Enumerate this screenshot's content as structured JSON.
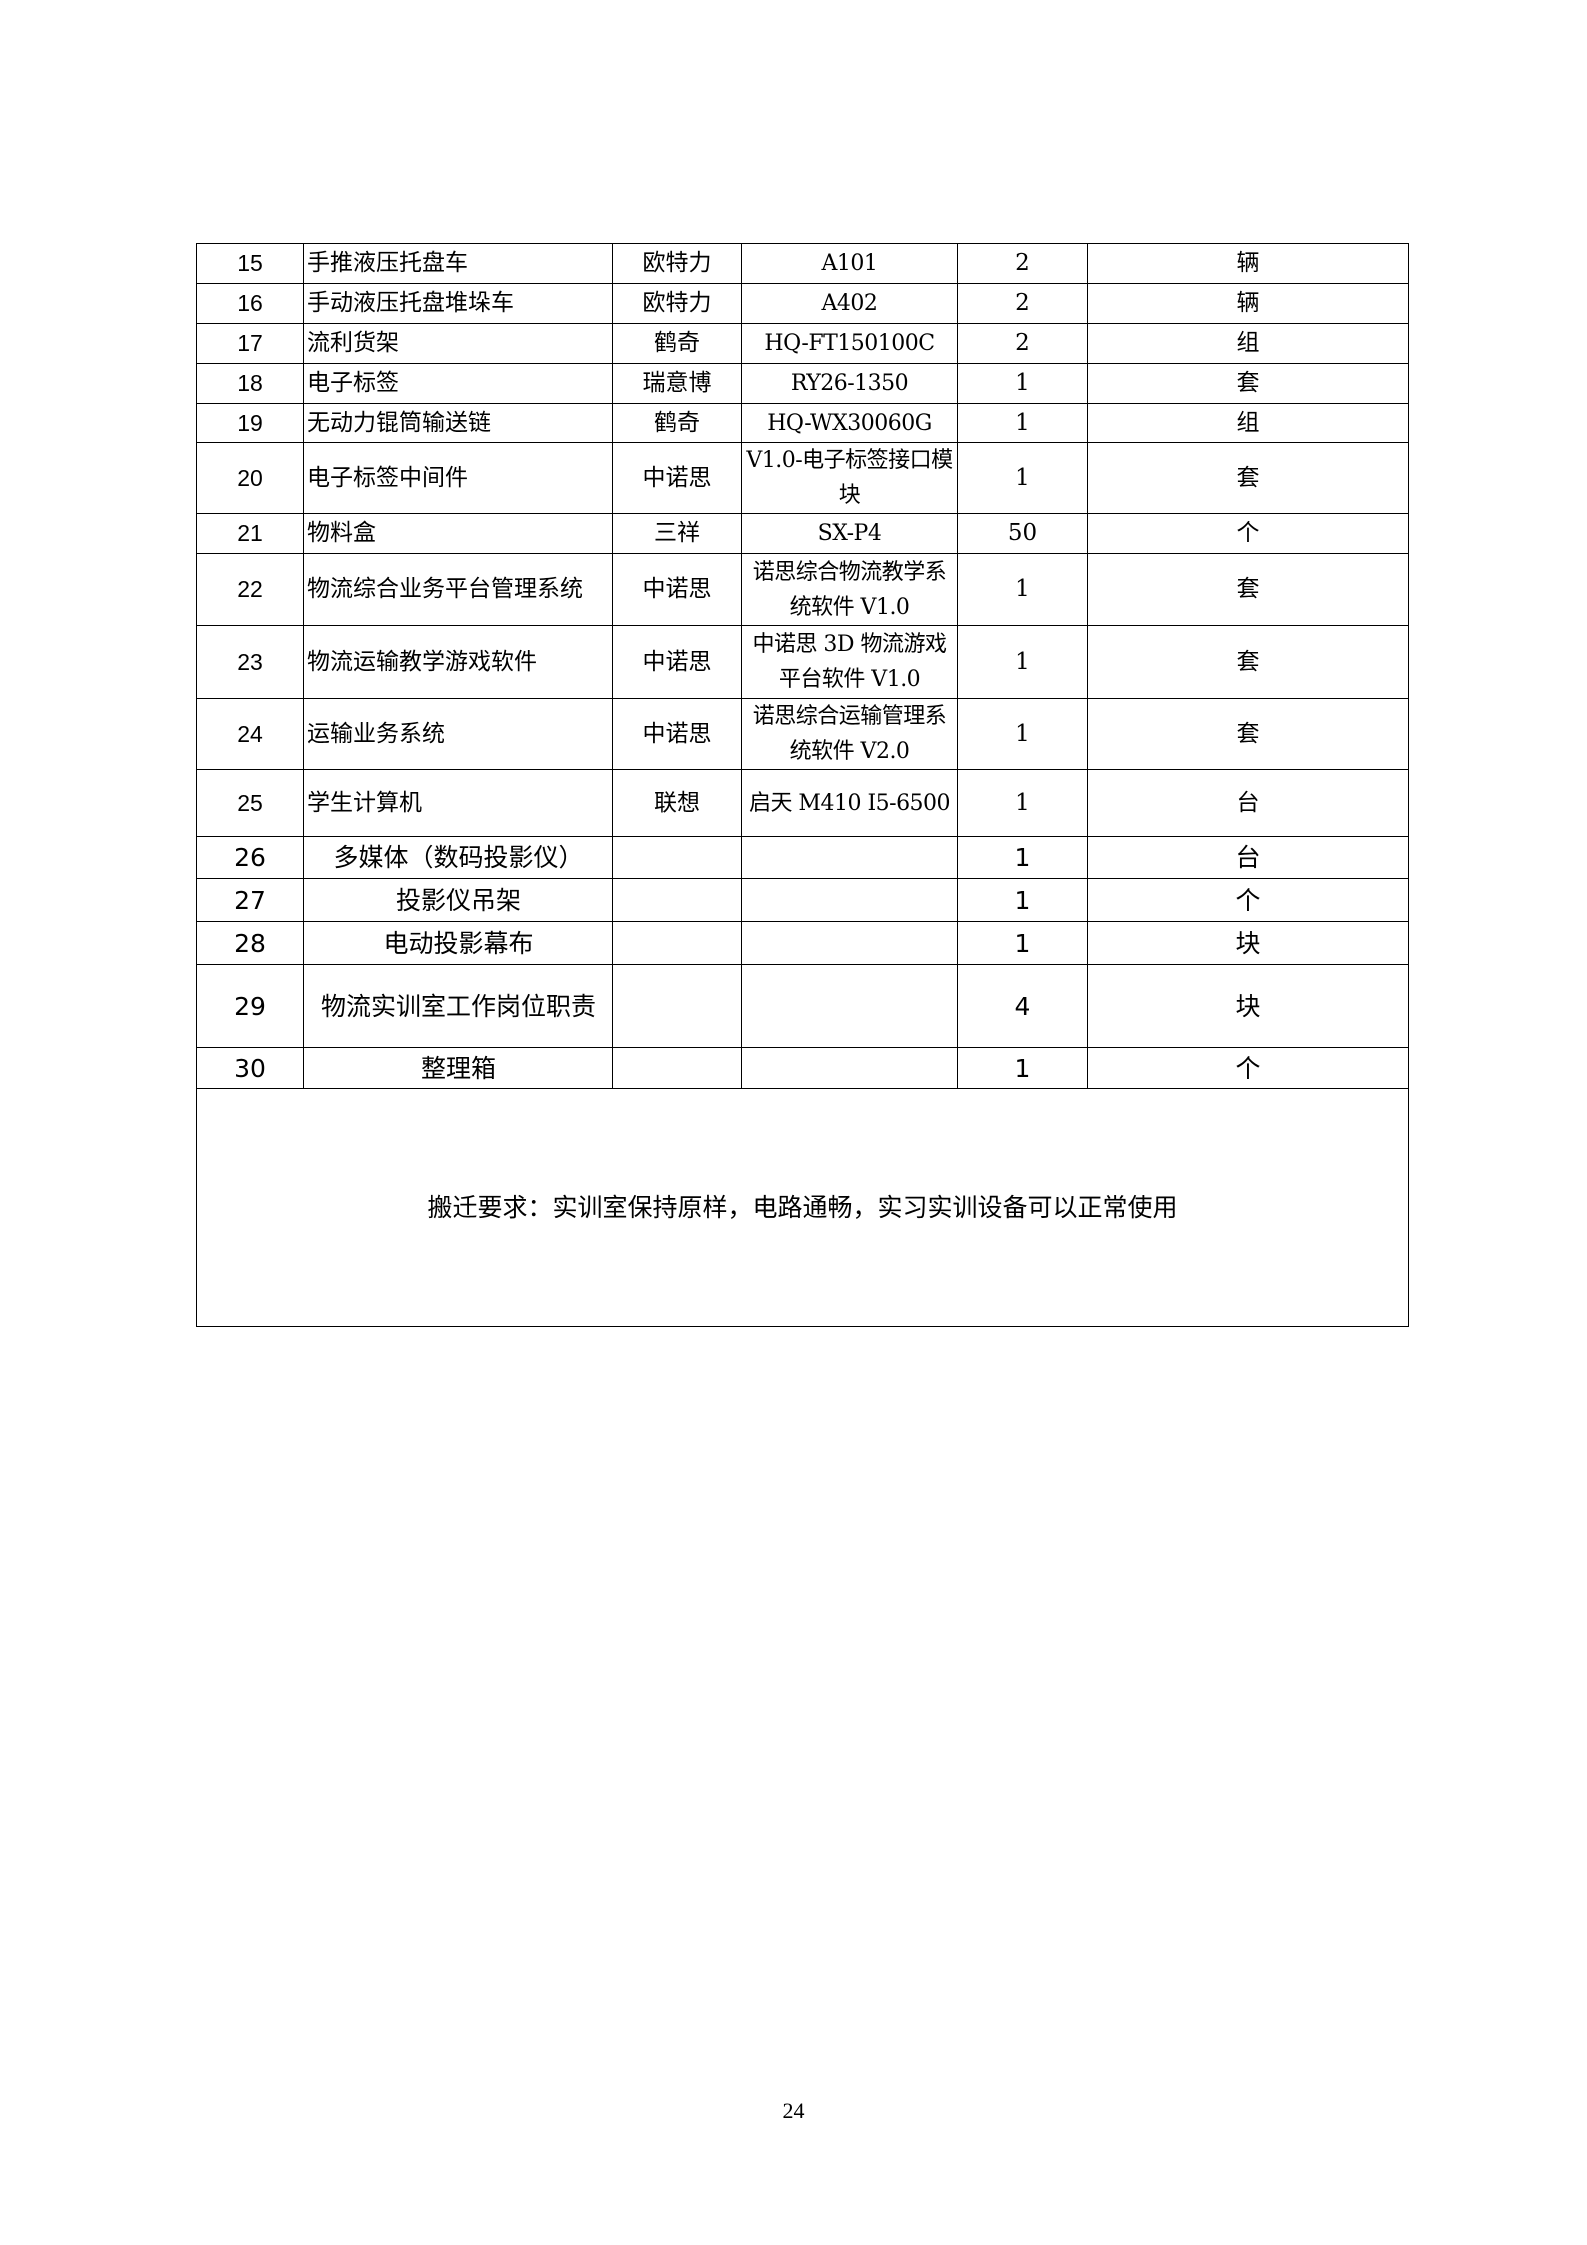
{
  "rows": [
    {
      "no": "15",
      "name": "手推液压托盘车",
      "brand": "欧特力",
      "model": "A101",
      "qty": "2",
      "unit": "辆"
    },
    {
      "no": "16",
      "name": "手动液压托盘堆垛车",
      "brand": "欧特力",
      "model": "A402",
      "qty": "2",
      "unit": "辆"
    },
    {
      "no": "17",
      "name": "流利货架",
      "brand": "鹤奇",
      "model": "HQ-FT150100C",
      "qty": "2",
      "unit": "组"
    },
    {
      "no": "18",
      "name": "电子标签",
      "brand": "瑞意博",
      "model": "RY26-1350",
      "qty": "1",
      "unit": "套"
    },
    {
      "no": "19",
      "name": "无动力锟筒输送链",
      "brand": "鹤奇",
      "model": "HQ-WX30060G",
      "qty": "1",
      "unit": "组"
    },
    {
      "no": "20",
      "name": "电子标签中间件",
      "brand": "中诺思",
      "model": "V1.0-电子标签接口模块",
      "qty": "1",
      "unit": "套"
    },
    {
      "no": "21",
      "name": "物料盒",
      "brand": "三祥",
      "model": "SX-P4",
      "qty": "50",
      "unit": "个"
    },
    {
      "no": "22",
      "name": "物流综合业务平台管理系统",
      "brand": "中诺思",
      "model": "诺思综合物流教学系统软件 V1.0",
      "qty": "1",
      "unit": "套"
    },
    {
      "no": "23",
      "name": "物流运输教学游戏软件",
      "brand": "中诺思",
      "model": "中诺思 3D 物流游戏平台软件 V1.0",
      "qty": "1",
      "unit": "套"
    },
    {
      "no": "24",
      "name": "运输业务系统",
      "brand": "中诺思",
      "model": "诺思综合运输管理系统软件 V2.0",
      "qty": "1",
      "unit": "套"
    },
    {
      "no": "25",
      "name": "学生计算机",
      "brand": "联想",
      "model": "启天 M410 I5-6500",
      "qty": "1",
      "unit": "台"
    },
    {
      "no": "26",
      "name": "多媒体（数码投影仪）",
      "brand": "",
      "model": "",
      "qty": "1",
      "unit": "台"
    },
    {
      "no": "27",
      "name": "投影仪吊架",
      "brand": "",
      "model": "",
      "qty": "1",
      "unit": "个"
    },
    {
      "no": "28",
      "name": "电动投影幕布",
      "brand": "",
      "model": "",
      "qty": "1",
      "unit": "块"
    },
    {
      "no": "29",
      "name": "物流实训室工作岗位职责",
      "brand": "",
      "model": "",
      "qty": "4",
      "unit": "块"
    },
    {
      "no": "30",
      "name": "整理箱",
      "brand": "",
      "model": "",
      "qty": "1",
      "unit": "个"
    }
  ],
  "note": "搬迁要求：实训室保持原样，电路通畅，实习实训设备可以正常使用",
  "page_number": "24"
}
